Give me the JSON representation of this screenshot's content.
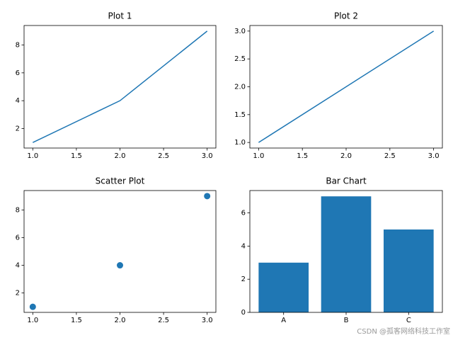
{
  "chart_data": [
    {
      "type": "line",
      "title": "Plot 1",
      "x": [
        1,
        2,
        3
      ],
      "values": [
        1,
        4,
        9
      ],
      "color": "#1f77b4",
      "xlim": [
        0.9,
        3.1
      ],
      "ylim": [
        0.6,
        9.4
      ],
      "xticks": [
        {
          "value": 1,
          "label": "1.0"
        },
        1.5,
        {
          "value": 2,
          "label": "2.0"
        },
        2.5,
        {
          "value": 3,
          "label": "3.0"
        }
      ],
      "yticks": [
        2,
        4,
        6,
        8
      ]
    },
    {
      "type": "line",
      "title": "Plot 2",
      "x": [
        1,
        2,
        3
      ],
      "values": [
        1,
        2,
        3
      ],
      "color": "#1f77b4",
      "xlim": [
        0.9,
        3.1
      ],
      "ylim": [
        0.9,
        3.1
      ],
      "xticks": [
        {
          "value": 1,
          "label": "1.0"
        },
        1.5,
        {
          "value": 2,
          "label": "2.0"
        },
        2.5,
        {
          "value": 3,
          "label": "3.0"
        }
      ],
      "yticks": [
        {
          "value": 1,
          "label": "1.0"
        },
        1.5,
        {
          "value": 2,
          "label": "2.0"
        },
        2.5,
        {
          "value": 3,
          "label": "3.0"
        }
      ]
    },
    {
      "type": "scatter",
      "title": "Scatter Plot",
      "x": [
        1,
        2,
        3
      ],
      "values": [
        1,
        4,
        9
      ],
      "color": "#1f77b4",
      "xlim": [
        0.9,
        3.1
      ],
      "ylim": [
        0.6,
        9.4
      ],
      "xticks": [
        {
          "value": 1,
          "label": "1.0"
        },
        1.5,
        {
          "value": 2,
          "label": "2.0"
        },
        2.5,
        {
          "value": 3,
          "label": "3.0"
        }
      ],
      "yticks": [
        2,
        4,
        6,
        8
      ]
    },
    {
      "type": "bar",
      "title": "Bar Chart",
      "categories": [
        "A",
        "B",
        "C"
      ],
      "values": [
        3,
        7,
        5
      ],
      "color": "#1f77b4",
      "ylim": [
        0,
        7.35
      ],
      "yticks": [
        0,
        2,
        4,
        6
      ]
    }
  ],
  "watermark": "CSDN @孤客网络科技工作室"
}
